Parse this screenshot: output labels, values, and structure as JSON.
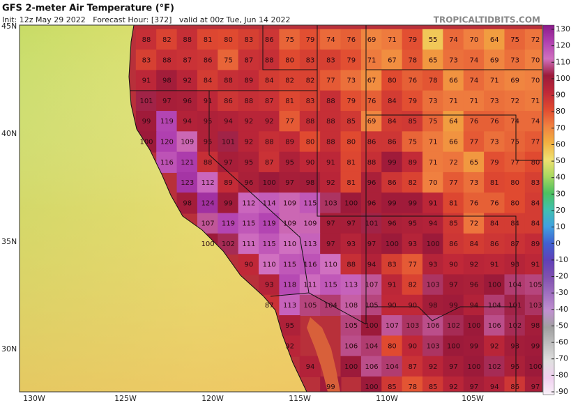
{
  "header": {
    "title": "GFS 2-meter Air Temperature (°F)",
    "subtitle": "Init: 12z May 29 2022   Forecast Hour: [372]   valid at 00z Tue, Jun 14 2022",
    "watermark": "TROPICALTIDBITS.COM"
  },
  "latitude_labels": [
    "45N",
    "40N",
    "35N",
    "30N"
  ],
  "longitude_labels": [
    "130W",
    "125W",
    "120W",
    "115W",
    "110W",
    "105W"
  ],
  "colorbar": {
    "ticks": [
      130,
      120,
      110,
      100,
      90,
      80,
      70,
      60,
      50,
      40,
      30,
      20,
      10,
      0,
      -10,
      -20,
      -30,
      -40,
      -50,
      -60,
      -70,
      -80,
      -90
    ],
    "colors": [
      "#8a1a8a",
      "#b040b0",
      "#d070c0",
      "#9c1a3a",
      "#c02838",
      "#e04a30",
      "#f08040",
      "#f2b040",
      "#f0e070",
      "#a8d860",
      "#4cc060",
      "#40c0b0",
      "#40a0e0",
      "#4060d0",
      "#6040b8",
      "#8050b0",
      "#a070c0",
      "#c090d0",
      "#a0a0a0",
      "#c0c0c0",
      "#e0e0e0",
      "#f0d0f0",
      "#f8f0f8"
    ]
  },
  "temperatures": [
    [
      88,
      82,
      88,
      81,
      80,
      83,
      86,
      75,
      79,
      74,
      76,
      69,
      71,
      79,
      55,
      74,
      70,
      64,
      75,
      72
    ],
    [
      83,
      88,
      87,
      86,
      75,
      87,
      88,
      80,
      83,
      83,
      79,
      71,
      67,
      78,
      65,
      73,
      74,
      69,
      73,
      70
    ],
    [
      91,
      98,
      92,
      84,
      88,
      89,
      84,
      82,
      82,
      77,
      73,
      67,
      80,
      76,
      78,
      66,
      74,
      71,
      69,
      70
    ],
    [
      101,
      97,
      96,
      91,
      86,
      88,
      87,
      81,
      83,
      88,
      79,
      76,
      84,
      79,
      73,
      71,
      71,
      73,
      72,
      71
    ],
    [
      99,
      119,
      94,
      95,
      94,
      92,
      92,
      77,
      88,
      88,
      85,
      69,
      84,
      85,
      75,
      64,
      76,
      76,
      74,
      74
    ],
    [
      100,
      120,
      109,
      95,
      101,
      92,
      88,
      89,
      80,
      88,
      80,
      86,
      86,
      75,
      71,
      66,
      77,
      73,
      75,
      77
    ],
    [
      null,
      116,
      121,
      88,
      97,
      95,
      87,
      95,
      90,
      91,
      81,
      88,
      99,
      89,
      71,
      72,
      65,
      79,
      77,
      80
    ],
    [
      null,
      null,
      123,
      112,
      89,
      96,
      100,
      97,
      98,
      92,
      81,
      96,
      86,
      82,
      70,
      77,
      73,
      81,
      80,
      83
    ],
    [
      null,
      null,
      98,
      124,
      99,
      112,
      114,
      109,
      115,
      103,
      100,
      96,
      99,
      99,
      91,
      81,
      76,
      76,
      80,
      84
    ],
    [
      null,
      null,
      null,
      107,
      119,
      115,
      119,
      109,
      109,
      97,
      97,
      101,
      96,
      95,
      94,
      85,
      72,
      84,
      84,
      84
    ],
    [
      null,
      null,
      null,
      100,
      102,
      111,
      115,
      110,
      113,
      97,
      93,
      97,
      100,
      93,
      100,
      86,
      84,
      86,
      87,
      89
    ],
    [
      null,
      null,
      null,
      null,
      null,
      90,
      110,
      115,
      116,
      110,
      88,
      94,
      83,
      77,
      93,
      90,
      92,
      91,
      93,
      91
    ],
    [
      null,
      null,
      null,
      null,
      null,
      null,
      93,
      118,
      111,
      115,
      113,
      107,
      91,
      82,
      103,
      97,
      96,
      100,
      104,
      105
    ],
    [
      null,
      null,
      null,
      null,
      null,
      null,
      87,
      113,
      105,
      104,
      108,
      105,
      90,
      90,
      98,
      99,
      94,
      104,
      101,
      103
    ],
    [
      null,
      null,
      null,
      null,
      null,
      null,
      null,
      95,
      null,
      null,
      105,
      100,
      107,
      103,
      106,
      102,
      100,
      106,
      102,
      98
    ],
    [
      null,
      null,
      null,
      null,
      null,
      null,
      null,
      92,
      null,
      null,
      106,
      104,
      80,
      90,
      103,
      100,
      99,
      92,
      98,
      99
    ],
    [
      null,
      null,
      null,
      null,
      null,
      null,
      null,
      null,
      94,
      null,
      100,
      106,
      104,
      87,
      92,
      97,
      100,
      102,
      96,
      100
    ],
    [
      null,
      null,
      null,
      null,
      null,
      null,
      null,
      null,
      null,
      99,
      null,
      100,
      85,
      78,
      85,
      92,
      97,
      94,
      86,
      97
    ]
  ]
}
